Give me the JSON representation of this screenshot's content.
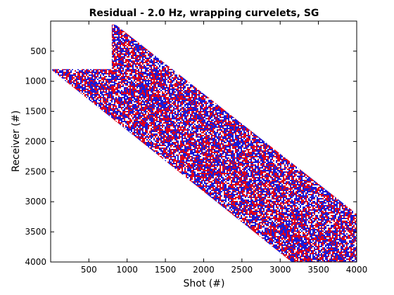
{
  "chart_data": {
    "type": "heatmap",
    "title": "Residual - 2.0 Hz, wrapping curvelets, SG",
    "xlabel": "Shot (#)",
    "ylabel": "Receiver (#)",
    "xlim": [
      1,
      4000
    ],
    "ylim": [
      4000,
      1
    ],
    "y_axis_reversed": true,
    "x_ticks": [
      500,
      1000,
      1500,
      2000,
      2500,
      3000,
      3500,
      4000
    ],
    "y_ticks": [
      500,
      1000,
      1500,
      2000,
      2500,
      3000,
      3500,
      4000
    ],
    "x_tick_labels": [
      "500",
      "1000",
      "1500",
      "2000",
      "2500",
      "3000",
      "3500",
      "4000"
    ],
    "y_tick_labels": [
      "500",
      "1000",
      "1500",
      "2000",
      "2500",
      "3000",
      "3500",
      "4000"
    ],
    "grid": false,
    "colors": {
      "positive": "#e0001a",
      "negative": "#1a1ad8",
      "zero": "#ffffff"
    },
    "support_region": {
      "description_of_data_units": "sampled region boundary in (shot, receiver)",
      "polygon": [
        [
          800,
          60
        ],
        [
          850,
          60
        ],
        [
          4000,
          3200
        ],
        [
          4000,
          4000
        ],
        [
          3150,
          4000
        ],
        [
          1,
          800
        ],
        [
          800,
          800
        ]
      ]
    }
  }
}
